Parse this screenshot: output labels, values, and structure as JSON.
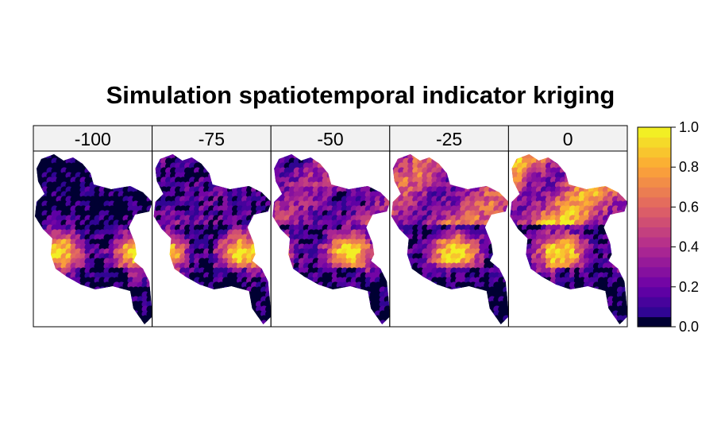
{
  "chart_data": {
    "type": "heatmap",
    "title": "Simulation spatiotemporal indicator kriging",
    "panels": [
      "-100",
      "-75",
      "-50",
      "-25",
      "0"
    ],
    "colorbar": {
      "range": [
        0,
        1
      ],
      "ticks": [
        "0.0",
        "0.2",
        "0.4",
        "0.6",
        "0.8",
        "1.0"
      ],
      "levels": 20,
      "palette": [
        "#0D0887",
        "#6A00A8",
        "#B12A90",
        "#E16462",
        "#FCA636",
        "#F0F921"
      ],
      "low_color": "#000033"
    },
    "axis_box": "on",
    "legend": "right"
  }
}
